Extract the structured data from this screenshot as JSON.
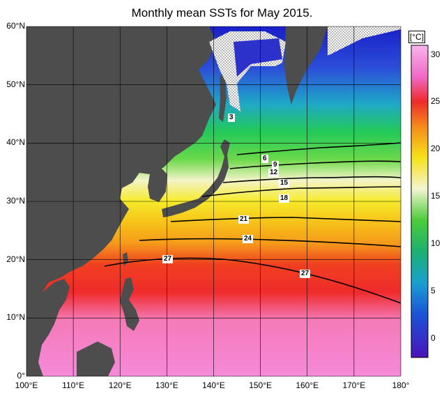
{
  "title": "Monthly mean SSTs for May 2015.",
  "lat_labels": [
    "60°N",
    "50°N",
    "40°N",
    "30°N",
    "20°N",
    "10°N",
    "0°"
  ],
  "lon_labels": [
    "100°E",
    "110°E",
    "120°E",
    "130°E",
    "140°E",
    "150°E",
    "160°E",
    "170°E",
    "180°"
  ],
  "colorbar": {
    "unit": "[°C]",
    "ticks": [
      "30",
      "25",
      "20",
      "15",
      "10",
      "5",
      "0"
    ],
    "range": [
      -2,
      31
    ]
  },
  "contour_labels": [
    "3",
    "6",
    "9",
    "12",
    "15",
    "18",
    "21",
    "24",
    "27",
    "27"
  ],
  "colors": {
    "land": "#4d4d4d",
    "hot": "#f58ad9",
    "cold": "#1a1fc8",
    "sea_ice": "#ffffff"
  }
}
